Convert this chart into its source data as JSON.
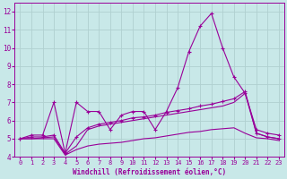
{
  "xlabel": "Windchill (Refroidissement éolien,°C)",
  "xlim": [
    -0.5,
    23.5
  ],
  "ylim": [
    4,
    12.5
  ],
  "xticks": [
    0,
    1,
    2,
    3,
    4,
    5,
    6,
    7,
    8,
    9,
    10,
    11,
    12,
    13,
    14,
    15,
    16,
    17,
    18,
    19,
    20,
    21,
    22,
    23
  ],
  "yticks": [
    4,
    5,
    6,
    7,
    8,
    9,
    10,
    11,
    12
  ],
  "bg_color": "#c8e8e8",
  "line_color": "#990099",
  "grid_color": "#b0d0d0",
  "line1_y": [
    5.0,
    5.2,
    5.2,
    7.0,
    4.2,
    7.0,
    6.5,
    6.5,
    5.5,
    6.3,
    6.5,
    6.5,
    5.5,
    6.5,
    7.8,
    9.8,
    11.2,
    11.9,
    10.0,
    8.4,
    7.5,
    5.5,
    5.3,
    5.2
  ],
  "line2_y": [
    5.0,
    5.1,
    5.1,
    5.2,
    4.2,
    5.1,
    5.6,
    5.8,
    5.9,
    6.0,
    6.15,
    6.2,
    6.3,
    6.45,
    6.55,
    6.65,
    6.8,
    6.9,
    7.05,
    7.2,
    7.6,
    5.3,
    5.1,
    5.0
  ],
  "line3_y": [
    5.0,
    5.0,
    5.05,
    5.1,
    4.15,
    4.6,
    5.5,
    5.7,
    5.8,
    5.9,
    6.0,
    6.1,
    6.2,
    6.3,
    6.4,
    6.5,
    6.6,
    6.7,
    6.8,
    7.0,
    7.5,
    5.3,
    5.1,
    5.0
  ],
  "line4_y": [
    5.0,
    5.0,
    5.0,
    5.0,
    4.1,
    4.4,
    4.6,
    4.7,
    4.75,
    4.8,
    4.9,
    5.0,
    5.05,
    5.15,
    5.25,
    5.35,
    5.4,
    5.5,
    5.55,
    5.6,
    5.3,
    5.05,
    5.0,
    4.9
  ]
}
